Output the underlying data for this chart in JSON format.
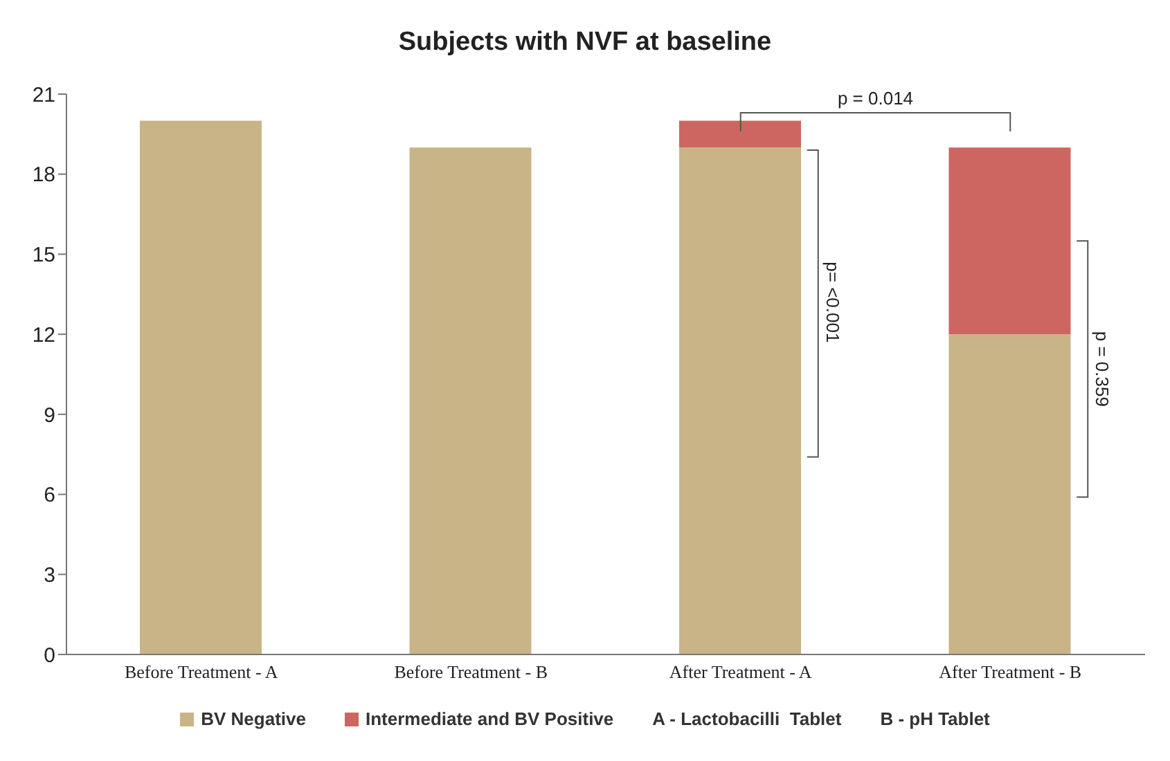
{
  "chart_data": {
    "type": "bar",
    "title": "Subjects with NVF at baseline",
    "categories": [
      "Before Treatment - A",
      "Before Treatment - B",
      "After Treatment - A",
      "After Treatment - B"
    ],
    "stacked": true,
    "series": [
      {
        "name": "BV Negative",
        "color": "#c9b488",
        "values": [
          20,
          19,
          19,
          12
        ]
      },
      {
        "name": "Intermediate and BV Positive",
        "color": "#cd6660",
        "values": [
          0,
          0,
          1,
          7
        ]
      }
    ],
    "ylim": [
      0,
      21
    ],
    "yticks": [
      0,
      3,
      6,
      9,
      12,
      15,
      18,
      21
    ],
    "grid": false,
    "legend": "bottom",
    "annotations": [
      "p = 0.014",
      "p= <0.001",
      "p = 0.359",
      "A - Lactobacilli  Tablet",
      "B - pH Tablet"
    ]
  }
}
